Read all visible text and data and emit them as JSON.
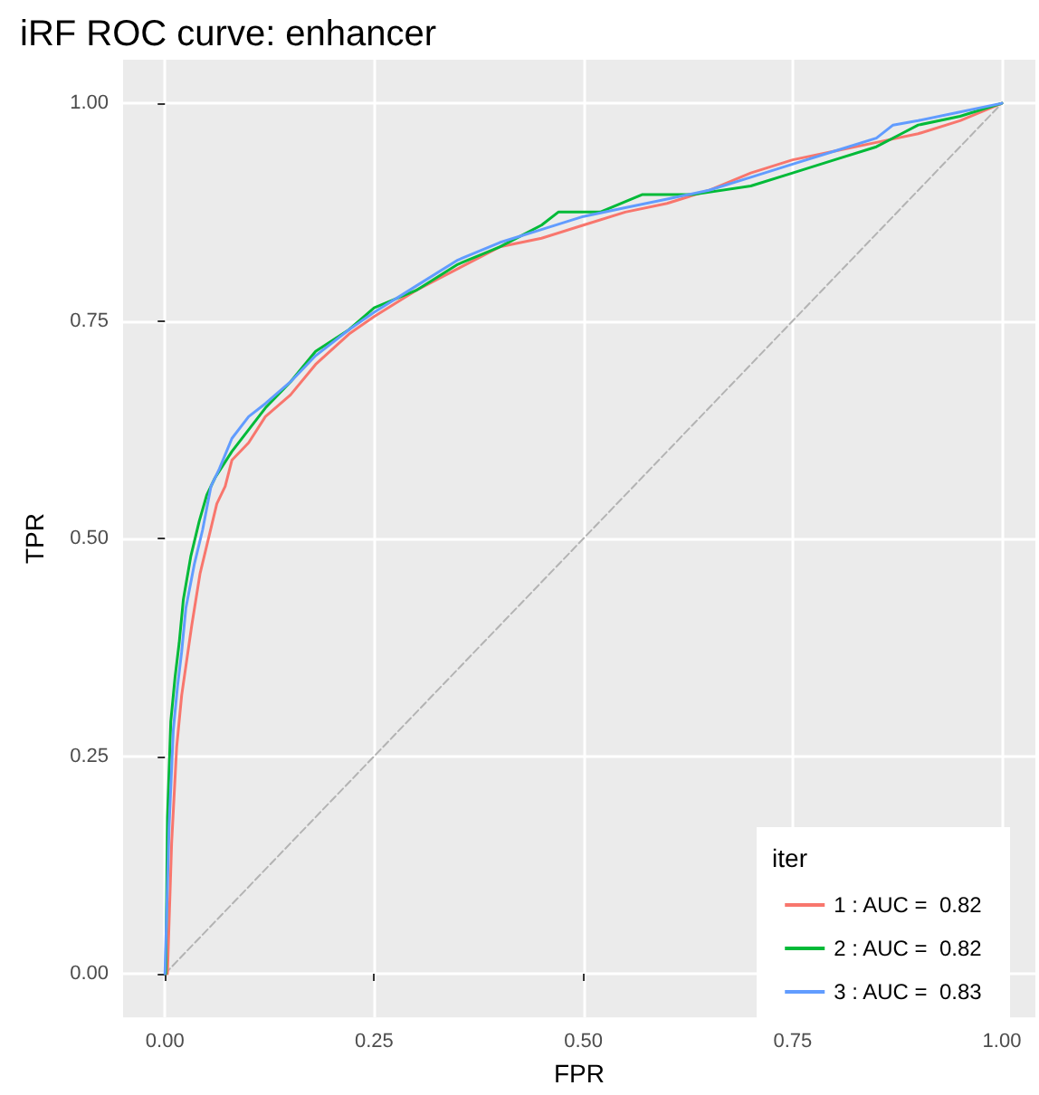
{
  "chart_data": {
    "type": "line",
    "title": "iRF ROC curve: enhancer",
    "xlabel": "FPR",
    "ylabel": "TPR",
    "legend_title": "iter",
    "legend": "bottom right",
    "grid": true,
    "line_style": "solid",
    "marker": "none",
    "xlim": [
      -0.05,
      1.04
    ],
    "ylim": [
      -0.05,
      1.05
    ],
    "xticks": [
      {
        "value": 0,
        "label": "0.00"
      },
      {
        "value": 0.25,
        "label": "0.25"
      },
      {
        "value": 0.5,
        "label": "0.50"
      },
      {
        "value": 0.75,
        "label": "0.75"
      },
      {
        "value": 1,
        "label": "1.00"
      }
    ],
    "yticks": [
      {
        "value": 0,
        "label": "0.00"
      },
      {
        "value": 0.25,
        "label": "0.25"
      },
      {
        "value": 0.5,
        "label": "0.50"
      },
      {
        "value": 0.75,
        "label": "0.75"
      },
      {
        "value": 1,
        "label": "1.00"
      }
    ],
    "series": [
      {
        "name": "1 : AUC =  0.82",
        "color": "#f8766d",
        "x": [
          0.003,
          0.008,
          0.014,
          0.02,
          0.026,
          0.032,
          0.042,
          0.052,
          0.062,
          0.072,
          0.08,
          0.1,
          0.12,
          0.15,
          0.18,
          0.22,
          0.25,
          0.3,
          0.35,
          0.4,
          0.45,
          0.5,
          0.55,
          0.6,
          0.65,
          0.7,
          0.75,
          0.8,
          0.85,
          0.9,
          0.95,
          1
        ],
        "values": [
          0,
          0.15,
          0.26,
          0.32,
          0.36,
          0.4,
          0.46,
          0.5,
          0.54,
          0.56,
          0.59,
          0.61,
          0.64,
          0.665,
          0.7,
          0.735,
          0.755,
          0.785,
          0.81,
          0.835,
          0.845,
          0.86,
          0.875,
          0.885,
          0.9,
          0.92,
          0.935,
          0.945,
          0.955,
          0.965,
          0.98,
          1
        ]
      },
      {
        "name": "2 : AUC =  0.82",
        "color": "#00ba38",
        "x": [
          0.001,
          0.003,
          0.007,
          0.012,
          0.017,
          0.022,
          0.031,
          0.041,
          0.05,
          0.06,
          0.08,
          0.1,
          0.12,
          0.15,
          0.18,
          0.22,
          0.25,
          0.3,
          0.35,
          0.4,
          0.45,
          0.47,
          0.52,
          0.57,
          0.63,
          0.7,
          0.75,
          0.8,
          0.85,
          0.88,
          0.9,
          0.95,
          1
        ],
        "values": [
          0,
          0.18,
          0.29,
          0.34,
          0.38,
          0.43,
          0.48,
          0.52,
          0.55,
          0.57,
          0.6,
          0.625,
          0.65,
          0.68,
          0.715,
          0.74,
          0.765,
          0.785,
          0.815,
          0.835,
          0.86,
          0.875,
          0.875,
          0.895,
          0.895,
          0.905,
          0.92,
          0.935,
          0.95,
          0.965,
          0.975,
          0.985,
          1
        ]
      },
      {
        "name": "3 : AUC =  0.83",
        "color": "#619cff",
        "x": [
          0,
          0.005,
          0.01,
          0.015,
          0.02,
          0.025,
          0.035,
          0.045,
          0.055,
          0.065,
          0.08,
          0.1,
          0.12,
          0.15,
          0.18,
          0.22,
          0.25,
          0.3,
          0.35,
          0.4,
          0.45,
          0.5,
          0.55,
          0.6,
          0.65,
          0.7,
          0.75,
          0.8,
          0.85,
          0.87,
          0.9,
          0.95,
          1
        ],
        "values": [
          0,
          0.17,
          0.28,
          0.33,
          0.37,
          0.42,
          0.47,
          0.51,
          0.56,
          0.58,
          0.615,
          0.64,
          0.655,
          0.68,
          0.71,
          0.74,
          0.76,
          0.79,
          0.82,
          0.84,
          0.855,
          0.87,
          0.88,
          0.89,
          0.9,
          0.915,
          0.93,
          0.945,
          0.96,
          0.975,
          0.98,
          0.99,
          1
        ]
      },
      {
        "type": "line",
        "color": "#b3b3b3",
        "line_style": "dashed",
        "x": [
          0,
          1
        ],
        "values": [
          0,
          1
        ]
      }
    ]
  }
}
